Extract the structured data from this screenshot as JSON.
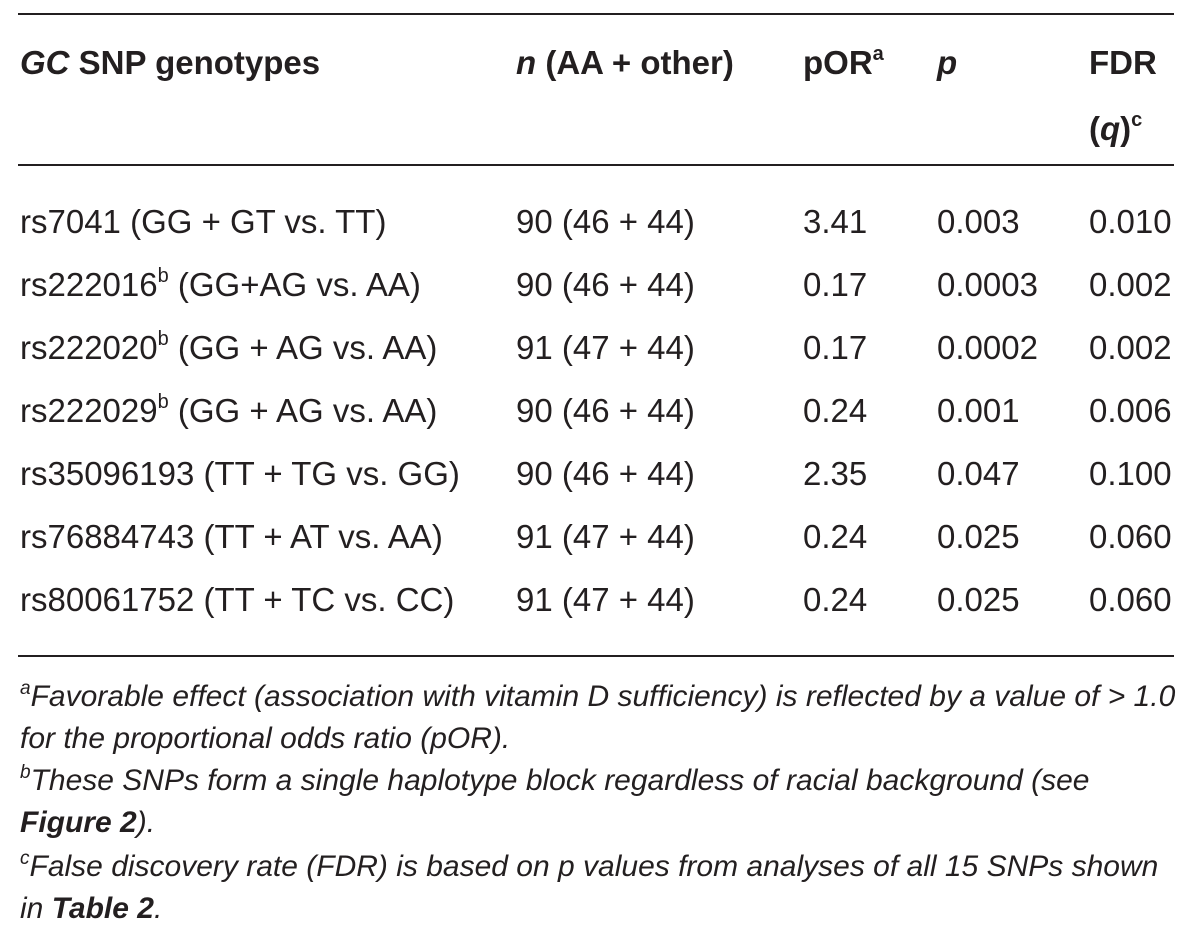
{
  "header": {
    "col0_italic": "GC",
    "col0_rest": " SNP genotypes",
    "col1_italic": "n",
    "col1_rest": " (AA + other)",
    "col2": "pOR",
    "col2_sup": "a",
    "col3": "p",
    "col4_line1": "FDR",
    "col4_line2_open": "(",
    "col4_line2_italic": "q",
    "col4_line2_close": ")",
    "col4_sup": "c"
  },
  "rows": [
    {
      "snp_id": "rs7041",
      "snp_sup": "",
      "snp_rest": " (GG + GT vs. TT)",
      "n": "90 (46 + 44)",
      "por": "3.41",
      "p": "0.003",
      "fdr": "0.010"
    },
    {
      "snp_id": "rs222016",
      "snp_sup": "b",
      "snp_rest": " (GG+AG vs. AA)",
      "n": "90 (46 + 44)",
      "por": "0.17",
      "p": "0.0003",
      "fdr": "0.002"
    },
    {
      "snp_id": "rs222020",
      "snp_sup": "b",
      "snp_rest": " (GG + AG vs. AA)",
      "n": "91 (47 + 44)",
      "por": "0.17",
      "p": "0.0002",
      "fdr": "0.002"
    },
    {
      "snp_id": "rs222029",
      "snp_sup": "b",
      "snp_rest": " (GG + AG vs. AA)",
      "n": "90 (46 + 44)",
      "por": "0.24",
      "p": "0.001",
      "fdr": "0.006"
    },
    {
      "snp_id": "rs35096193",
      "snp_sup": "",
      "snp_rest": " (TT + TG vs. GG)",
      "n": "90 (46 + 44)",
      "por": "2.35",
      "p": "0.047",
      "fdr": "0.100"
    },
    {
      "snp_id": "rs76884743",
      "snp_sup": "",
      "snp_rest": " (TT + AT vs. AA)",
      "n": "91 (47 + 44)",
      "por": "0.24",
      "p": "0.025",
      "fdr": "0.060"
    },
    {
      "snp_id": "rs80061752",
      "snp_sup": "",
      "snp_rest": " (TT + TC vs. CC)",
      "n": "91 (47 + 44)",
      "por": "0.24",
      "p": "0.025",
      "fdr": "0.060"
    }
  ],
  "footnotes": {
    "a_mark": "a",
    "a_text": "Favorable effect (association with vitamin D sufficiency) is reflected by a value of > 1.0 for the proportional odds ratio (pOR).",
    "b_mark": "b",
    "b_text": "These SNPs form a single haplotype block regardless of racial background (see ",
    "b_ref": "Figure 2",
    "b_end": ").",
    "c_mark": "c",
    "c_text": "False discovery rate (FDR) is based on p values from analyses of all 15 SNPs shown in ",
    "c_ref": "Table 2",
    "c_end": "."
  }
}
